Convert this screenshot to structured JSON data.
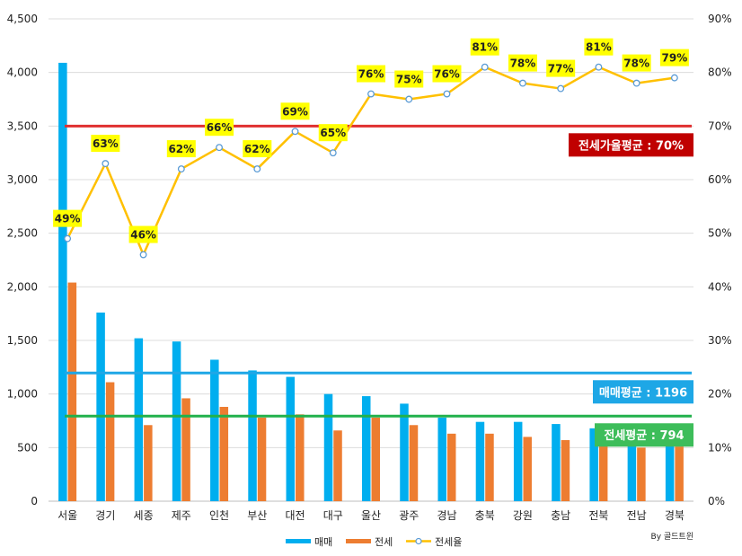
{
  "chart_data": {
    "type": "bar",
    "categories": [
      "서울",
      "경기",
      "세종",
      "제주",
      "인천",
      "부산",
      "대전",
      "대구",
      "울산",
      "광주",
      "경남",
      "충북",
      "강원",
      "충남",
      "전북",
      "전남",
      "경북"
    ],
    "series": [
      {
        "name": "매매",
        "axis": "left",
        "kind": "bar",
        "color": "#00aeef",
        "values": [
          4090,
          1760,
          1520,
          1490,
          1320,
          1220,
          1160,
          1000,
          980,
          910,
          780,
          740,
          740,
          720,
          680,
          600,
          600
        ]
      },
      {
        "name": "전세",
        "axis": "left",
        "kind": "bar",
        "color": "#ed7d31",
        "values": [
          2040,
          1110,
          710,
          960,
          880,
          780,
          810,
          660,
          780,
          710,
          630,
          630,
          600,
          570,
          580,
          500,
          510
        ]
      },
      {
        "name": "전세율",
        "axis": "right",
        "kind": "line",
        "color": "#ffc000",
        "values": [
          49,
          63,
          46,
          62,
          66,
          62,
          69,
          65,
          76,
          75,
          76,
          81,
          78,
          77,
          81,
          78,
          79
        ],
        "labels": [
          "49%",
          "63%",
          "46%",
          "62%",
          "66%",
          "62%",
          "69%",
          "65%",
          "76%",
          "75%",
          "76%",
          "81%",
          "78%",
          "77%",
          "81%",
          "78%",
          "79%"
        ]
      }
    ],
    "left_axis": {
      "min": 0,
      "max": 4500,
      "ticks": [
        "0",
        "500",
        "1,000",
        "1,500",
        "2,000",
        "2,500",
        "3,000",
        "3,500",
        "4,000",
        "4,500"
      ]
    },
    "right_axis": {
      "min": 0,
      "max": 90,
      "ticks": [
        "0%",
        "10%",
        "20%",
        "30%",
        "40%",
        "50%",
        "60%",
        "70%",
        "80%",
        "90%"
      ]
    },
    "reference_lines": [
      {
        "name": "전세가율평균",
        "axis": "right",
        "value": 70,
        "color": "#e03030",
        "box_color": "#c00000",
        "label": "전세가율평균 : 70%"
      },
      {
        "name": "매매평균",
        "axis": "left",
        "value": 1196,
        "color": "#1ea7e6",
        "box_color": "#1ea7e6",
        "label": "매매평균 : 1196"
      },
      {
        "name": "전세평균",
        "axis": "left",
        "value": 794,
        "color": "#22b14c",
        "box_color": "#3dbd5a",
        "label": "전세평균 : 794"
      }
    ],
    "legend": [
      "매매",
      "전세",
      "전세율"
    ],
    "legend_position": "bottom",
    "credit": "By 골드트윈",
    "grid": true
  }
}
